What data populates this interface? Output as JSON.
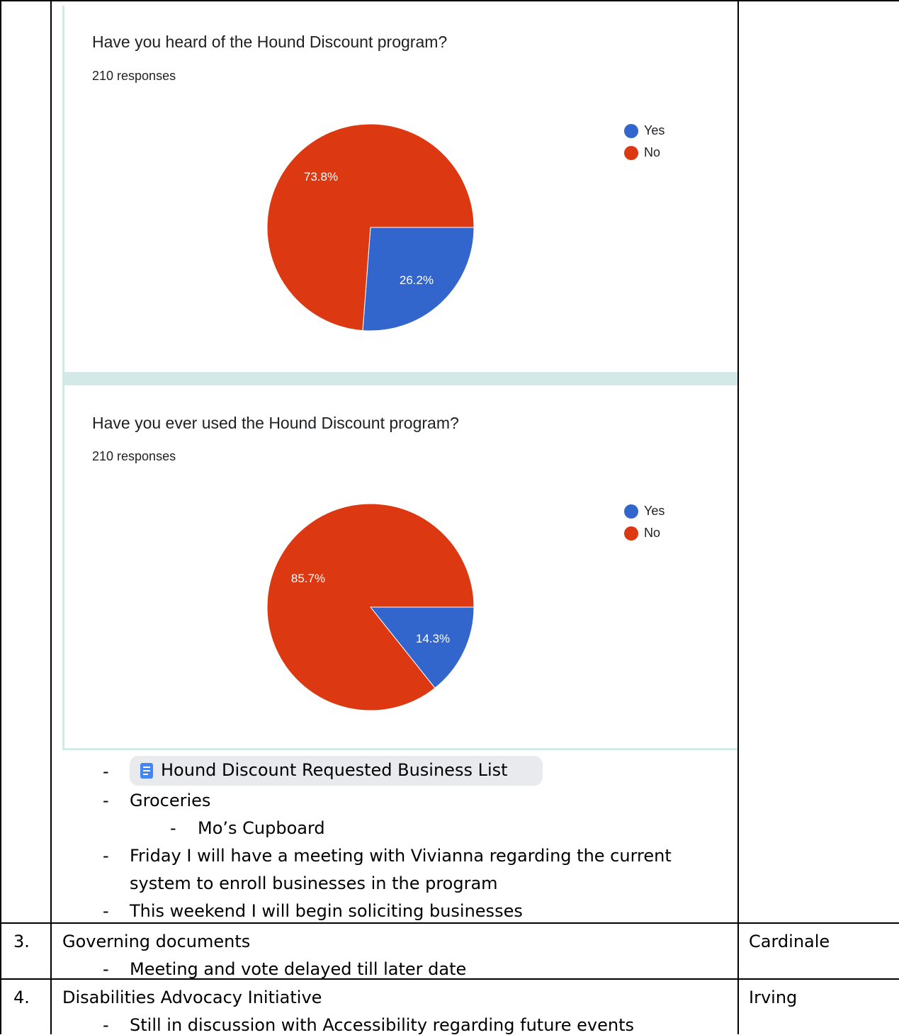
{
  "charts": [
    {
      "title": "Have you heard of the Hound Discount program?",
      "responses": "210 responses",
      "legend": [
        "Yes",
        "No"
      ],
      "colors": {
        "Yes": "#3366cc",
        "No": "#dc3912"
      }
    },
    {
      "title": "Have you ever used the Hound Discount program?",
      "responses": "210 responses",
      "legend": [
        "Yes",
        "No"
      ],
      "colors": {
        "Yes": "#3366cc",
        "No": "#dc3912"
      }
    }
  ],
  "chart_data": [
    {
      "type": "pie",
      "title": "Have you heard of the Hound Discount program?",
      "categories": [
        "Yes",
        "No"
      ],
      "values": [
        26.2,
        73.8
      ],
      "labels": [
        "26.2%",
        "73.8%"
      ],
      "legend": "top-right"
    },
    {
      "type": "pie",
      "title": "Have you ever used the Hound Discount program?",
      "categories": [
        "Yes",
        "No"
      ],
      "values": [
        14.3,
        85.7
      ],
      "labels": [
        "14.3%",
        "85.7%"
      ],
      "legend": "top-right"
    }
  ],
  "notes": {
    "bullet": "-",
    "chip_label": "Hound Discount Requested Business List",
    "chip_icon": "document-icon",
    "items": [
      "Groceries",
      "Mo’s Cupboard",
      "Friday I will have a meeting with Vivianna regarding the current",
      "system to enroll businesses in the program",
      "This weekend I will begin soliciting businesses"
    ]
  },
  "rows": [
    {
      "number": "3.",
      "topic": "Governing documents",
      "detail": "Meeting and vote delayed till later date",
      "owner": "Cardinale"
    },
    {
      "number": "4.",
      "topic": "Disabilities Advocacy Initiative",
      "detail": "Still in discussion with Accessibility regarding future events",
      "owner": "Irving"
    }
  ]
}
